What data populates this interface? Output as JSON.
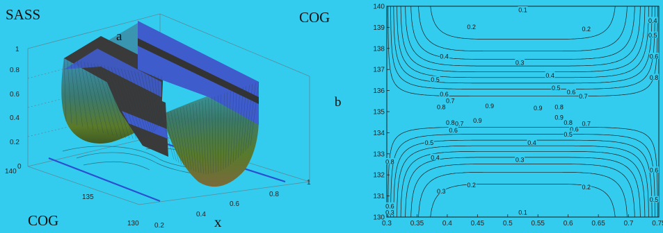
{
  "labels": {
    "sass": "SASS",
    "cog_top": "COG",
    "cog_bottom": "COG",
    "a": "a",
    "b": "b",
    "x": "x"
  },
  "colors": {
    "background": "#33ccee",
    "plot_bg": "#33ccee",
    "surface_blue": "#3f5ccc",
    "surface_dark": "#3a3a3a",
    "surface_green": "#5a7a2a",
    "surface_teal": "#3aa0b0",
    "contour": "#1a1a1a",
    "floor_line": "#1f4fbf"
  },
  "chart_data": [
    {
      "type": "surface",
      "zlim": [
        0,
        1
      ],
      "z_ticks": [
        "0",
        "0.2",
        "0.4",
        "0.6",
        "0.8",
        "1"
      ],
      "x_ticks": [
        "0.2",
        "0.4",
        "0.6",
        "0.8",
        "1"
      ],
      "y_ticks": [
        "130",
        "135",
        "140"
      ]
    },
    {
      "type": "contour",
      "xlim": [
        0.3,
        0.75
      ],
      "ylim": [
        130,
        140
      ],
      "x_ticks": [
        "0.3",
        "0.35",
        "0.4",
        "0.45",
        "0.5",
        "0.55",
        "0.6",
        "0.65",
        "0.7",
        "0.75"
      ],
      "y_ticks": [
        "130",
        "131",
        "132",
        "133",
        "134",
        "135",
        "136",
        "137",
        "138",
        "139",
        "140"
      ],
      "center_y": 135,
      "levels": [
        0.1,
        0.2,
        0.3,
        0.4,
        0.5,
        0.6,
        0.7,
        0.8,
        0.9
      ],
      "contour_labels": [
        {
          "text": "0.1",
          "x": 0.525,
          "y": 139.8
        },
        {
          "text": "0.2",
          "x": 0.44,
          "y": 139.0
        },
        {
          "text": "0.2",
          "x": 0.63,
          "y": 138.9
        },
        {
          "text": "0.3",
          "x": 0.52,
          "y": 137.3
        },
        {
          "text": "0.4",
          "x": 0.57,
          "y": 136.7
        },
        {
          "text": "0.4",
          "x": 0.395,
          "y": 137.6
        },
        {
          "text": "0.5",
          "x": 0.38,
          "y": 136.5
        },
        {
          "text": "0.5",
          "x": 0.58,
          "y": 136.1
        },
        {
          "text": "0.6",
          "x": 0.605,
          "y": 135.9
        },
        {
          "text": "0.7",
          "x": 0.625,
          "y": 135.7
        },
        {
          "text": "0.6",
          "x": 0.395,
          "y": 135.8
        },
        {
          "text": "0.7",
          "x": 0.405,
          "y": 135.5
        },
        {
          "text": "0.8",
          "x": 0.39,
          "y": 135.2
        },
        {
          "text": "0.9",
          "x": 0.47,
          "y": 135.25
        },
        {
          "text": "0.9",
          "x": 0.55,
          "y": 135.15
        },
        {
          "text": "0.8",
          "x": 0.585,
          "y": 135.2
        },
        {
          "text": "0.9",
          "x": 0.45,
          "y": 134.55
        },
        {
          "text": "0.8",
          "x": 0.405,
          "y": 134.45
        },
        {
          "text": "0.7",
          "x": 0.42,
          "y": 134.4
        },
        {
          "text": "0.6",
          "x": 0.41,
          "y": 134.1
        },
        {
          "text": "0.8",
          "x": 0.6,
          "y": 134.45
        },
        {
          "text": "0.9",
          "x": 0.585,
          "y": 134.7
        },
        {
          "text": "0.7",
          "x": 0.63,
          "y": 134.4
        },
        {
          "text": "0.6",
          "x": 0.61,
          "y": 134.15
        },
        {
          "text": "0.5",
          "x": 0.6,
          "y": 133.9
        },
        {
          "text": "0.5",
          "x": 0.37,
          "y": 133.5
        },
        {
          "text": "0.4",
          "x": 0.54,
          "y": 133.5
        },
        {
          "text": "0.4",
          "x": 0.38,
          "y": 132.8
        },
        {
          "text": "0.3",
          "x": 0.52,
          "y": 132.7
        },
        {
          "text": "0.3",
          "x": 0.39,
          "y": 131.2
        },
        {
          "text": "0.2",
          "x": 0.44,
          "y": 131.5
        },
        {
          "text": "0.2",
          "x": 0.63,
          "y": 131.4
        },
        {
          "text": "0.1",
          "x": 0.525,
          "y": 130.2
        },
        {
          "text": "0.4",
          "x": 0.74,
          "y": 139.3
        },
        {
          "text": "0.5",
          "x": 0.74,
          "y": 138.6
        },
        {
          "text": "0.6",
          "x": 0.742,
          "y": 137.6
        },
        {
          "text": "0.8",
          "x": 0.742,
          "y": 136.6
        },
        {
          "text": "0.8",
          "x": 0.305,
          "y": 132.6
        },
        {
          "text": "0.6",
          "x": 0.305,
          "y": 130.5
        },
        {
          "text": "0.3",
          "x": 0.305,
          "y": 130.2
        },
        {
          "text": "0.6",
          "x": 0.742,
          "y": 132.2
        },
        {
          "text": "0.5",
          "x": 0.742,
          "y": 130.8
        }
      ]
    }
  ]
}
